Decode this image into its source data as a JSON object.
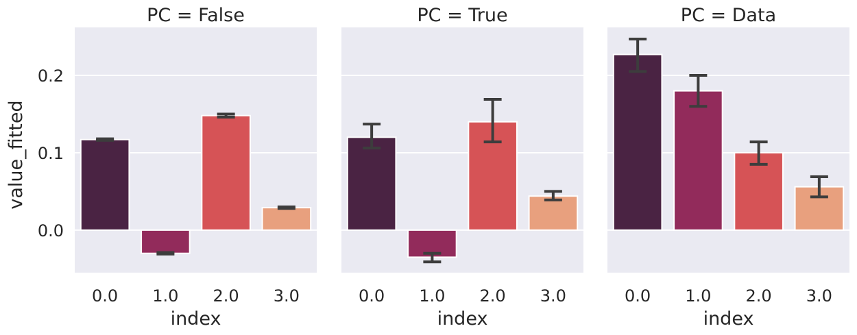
{
  "chart_data": {
    "type": "bar",
    "layout": "facet-columns",
    "facet_variable": "PC",
    "xlabel": "index",
    "ylabel": "value_fitted",
    "categories": [
      "0.0",
      "1.0",
      "2.0",
      "3.0"
    ],
    "ylim": [
      -0.055,
      0.262
    ],
    "y_ticks": [
      0.0,
      0.1,
      0.2
    ],
    "y_tick_labels": [
      "0.0",
      "0.1",
      "0.2"
    ],
    "grid": true,
    "colors": [
      "#4a2343",
      "#922b5b",
      "#d65356",
      "#e8a07e"
    ],
    "error_color": "#3d3d3d",
    "facets": [
      {
        "title": "PC = False",
        "values": [
          0.117,
          -0.03,
          0.148,
          0.029
        ],
        "ci": [
          [
            0.116,
            0.118
          ],
          [
            -0.031,
            -0.029
          ],
          [
            0.146,
            0.15
          ],
          [
            0.028,
            0.03
          ]
        ]
      },
      {
        "title": "PC = True",
        "values": [
          0.12,
          -0.035,
          0.14,
          0.044
        ],
        "ci": [
          [
            0.106,
            0.137
          ],
          [
            -0.041,
            -0.03
          ],
          [
            0.114,
            0.169
          ],
          [
            0.039,
            0.05
          ]
        ]
      },
      {
        "title": "PC = Data",
        "values": [
          0.227,
          0.18,
          0.1,
          0.056
        ],
        "ci": [
          [
            0.205,
            0.247
          ],
          [
            0.16,
            0.2
          ],
          [
            0.085,
            0.114
          ],
          [
            0.043,
            0.069
          ]
        ]
      }
    ]
  }
}
